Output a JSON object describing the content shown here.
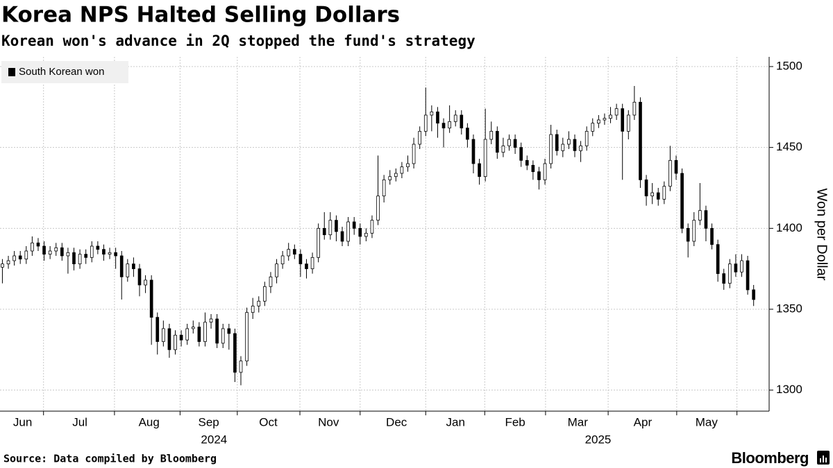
{
  "chart_data": {
    "type": "candlestick",
    "title": "Korea NPS Halted Selling Dollars",
    "subtitle": "Korean won's advance in 2Q stopped the fund's strategy",
    "y_label": "Won per Dollar",
    "source": "Source: Data compiled by Bloomberg",
    "brand": "Bloomberg",
    "legend": "top-left",
    "grid": true,
    "series": [
      {
        "name": "South Korean won",
        "color": "#000000",
        "up_fill": "#ffffff",
        "open": [
          1376,
          1378,
          1380,
          1383,
          1381,
          1386,
          1391,
          1389,
          1384,
          1386,
          1388,
          1383,
          1385,
          1378,
          1384,
          1382,
          1389,
          1387,
          1384,
          1385,
          1383,
          1370,
          1378,
          1375,
          1365,
          1368,
          1345,
          1330,
          1338,
          1325,
          1334,
          1331,
          1338,
          1339,
          1330,
          1342,
          1344,
          1329,
          1338,
          1335,
          1311,
          1318,
          1348,
          1352,
          1355,
          1364,
          1370,
          1378,
          1383,
          1387,
          1384,
          1378,
          1375,
          1382,
          1400,
          1396,
          1405,
          1398,
          1392,
          1404,
          1400,
          1395,
          1397,
          1405,
          1420,
          1430,
          1432,
          1434,
          1438,
          1440,
          1452,
          1460,
          1470,
          1472,
          1465,
          1462,
          1466,
          1470,
          1462,
          1455,
          1440,
          1432,
          1455,
          1460,
          1447,
          1451,
          1455,
          1450,
          1442,
          1439,
          1435,
          1430,
          1440,
          1458,
          1448,
          1452,
          1455,
          1448,
          1451,
          1460,
          1465,
          1467,
          1468,
          1470,
          1474,
          1460,
          1470,
          1478,
          1430,
          1420,
          1422,
          1418,
          1426,
          1442,
          1434,
          1400,
          1392,
          1405,
          1411,
          1400,
          1390,
          1372,
          1366,
          1378,
          1373,
          1380,
          1362
        ],
        "high": [
          1381,
          1383,
          1386,
          1386,
          1389,
          1395,
          1394,
          1392,
          1389,
          1391,
          1391,
          1388,
          1388,
          1387,
          1387,
          1392,
          1392,
          1390,
          1388,
          1388,
          1386,
          1381,
          1382,
          1378,
          1371,
          1371,
          1348,
          1343,
          1341,
          1337,
          1337,
          1341,
          1343,
          1342,
          1348,
          1347,
          1347,
          1341,
          1341,
          1338,
          1321,
          1351,
          1357,
          1358,
          1367,
          1373,
          1381,
          1386,
          1391,
          1390,
          1387,
          1381,
          1385,
          1403,
          1410,
          1410,
          1408,
          1401,
          1407,
          1407,
          1403,
          1400,
          1408,
          1445,
          1433,
          1436,
          1437,
          1441,
          1445,
          1456,
          1463,
          1487,
          1476,
          1475,
          1468,
          1476,
          1473,
          1473,
          1465,
          1458,
          1443,
          1474,
          1466,
          1463,
          1456,
          1458,
          1458,
          1453,
          1445,
          1442,
          1438,
          1443,
          1464,
          1461,
          1456,
          1460,
          1458,
          1454,
          1463,
          1468,
          1470,
          1471,
          1475,
          1477,
          1477,
          1473,
          1488,
          1481,
          1433,
          1428,
          1425,
          1429,
          1451,
          1445,
          1437,
          1403,
          1410,
          1428,
          1414,
          1403,
          1393,
          1375,
          1381,
          1384,
          1384,
          1383,
          1365
        ],
        "low": [
          1366,
          1375,
          1377,
          1378,
          1378,
          1383,
          1386,
          1380,
          1381,
          1383,
          1380,
          1372,
          1374,
          1375,
          1378,
          1379,
          1384,
          1380,
          1381,
          1375,
          1356,
          1367,
          1370,
          1358,
          1360,
          1328,
          1322,
          1327,
          1320,
          1322,
          1327,
          1328,
          1335,
          1327,
          1327,
          1338,
          1326,
          1326,
          1325,
          1305,
          1303,
          1315,
          1344,
          1348,
          1352,
          1360,
          1366,
          1375,
          1380,
          1381,
          1370,
          1369,
          1372,
          1379,
          1393,
          1393,
          1392,
          1389,
          1389,
          1396,
          1390,
          1392,
          1394,
          1402,
          1416,
          1427,
          1429,
          1431,
          1435,
          1437,
          1449,
          1457,
          1460,
          1456,
          1450,
          1459,
          1463,
          1458,
          1450,
          1434,
          1427,
          1429,
          1452,
          1443,
          1444,
          1448,
          1446,
          1438,
          1436,
          1430,
          1424,
          1427,
          1437,
          1445,
          1444,
          1449,
          1444,
          1441,
          1448,
          1457,
          1462,
          1464,
          1465,
          1467,
          1430,
          1455,
          1467,
          1425,
          1414,
          1415,
          1414,
          1415,
          1423,
          1430,
          1397,
          1382,
          1389,
          1402,
          1392,
          1387,
          1367,
          1362,
          1363,
          1370,
          1370,
          1359,
          1352
        ],
        "close": [
          1378,
          1380,
          1383,
          1381,
          1386,
          1391,
          1389,
          1384,
          1386,
          1388,
          1383,
          1385,
          1378,
          1384,
          1382,
          1389,
          1387,
          1384,
          1385,
          1383,
          1370,
          1378,
          1375,
          1365,
          1368,
          1345,
          1330,
          1338,
          1325,
          1334,
          1331,
          1338,
          1339,
          1330,
          1342,
          1344,
          1329,
          1338,
          1335,
          1311,
          1318,
          1348,
          1352,
          1355,
          1364,
          1370,
          1378,
          1383,
          1387,
          1384,
          1378,
          1375,
          1382,
          1400,
          1396,
          1405,
          1398,
          1392,
          1404,
          1400,
          1395,
          1397,
          1405,
          1420,
          1430,
          1432,
          1434,
          1438,
          1440,
          1452,
          1460,
          1470,
          1472,
          1465,
          1462,
          1466,
          1470,
          1462,
          1455,
          1440,
          1432,
          1455,
          1460,
          1447,
          1451,
          1455,
          1450,
          1442,
          1439,
          1435,
          1430,
          1440,
          1458,
          1448,
          1452,
          1455,
          1448,
          1451,
          1460,
          1465,
          1467,
          1468,
          1470,
          1474,
          1460,
          1470,
          1478,
          1430,
          1420,
          1422,
          1418,
          1426,
          1442,
          1434,
          1400,
          1392,
          1405,
          1411,
          1400,
          1390,
          1372,
          1366,
          1378,
          1373,
          1380,
          1362,
          1356
        ]
      }
    ],
    "xlim": [
      0,
      129
    ],
    "month_boundaries": [
      7.3,
      19.2,
      30.2,
      39.8,
      50.3,
      60.4,
      71.4,
      81.3,
      91.5,
      102,
      113.5,
      123.6
    ],
    "months": [
      {
        "value": 3.8,
        "label": "Jun"
      },
      {
        "value": 13.4,
        "label": "Jul"
      },
      {
        "value": 25,
        "label": "Aug"
      },
      {
        "value": 35,
        "label": "Sep"
      },
      {
        "value": 45,
        "label": "Oct"
      },
      {
        "value": 55.1,
        "label": "Nov"
      },
      {
        "value": 66.5,
        "label": "Dec"
      },
      {
        "value": 76.4,
        "label": "Jan"
      },
      {
        "value": 86.4,
        "label": "Feb"
      },
      {
        "value": 96.9,
        "label": "Mar"
      },
      {
        "value": 107.8,
        "label": "Apr"
      },
      {
        "value": 118.5,
        "label": "May"
      }
    ],
    "years": [
      {
        "value": 35.9,
        "label": "2024"
      },
      {
        "value": 100.3,
        "label": "2025"
      }
    ],
    "ylim": [
      1287,
      1506
    ],
    "yticks": [
      1300,
      1350,
      1400,
      1450,
      1500
    ]
  }
}
